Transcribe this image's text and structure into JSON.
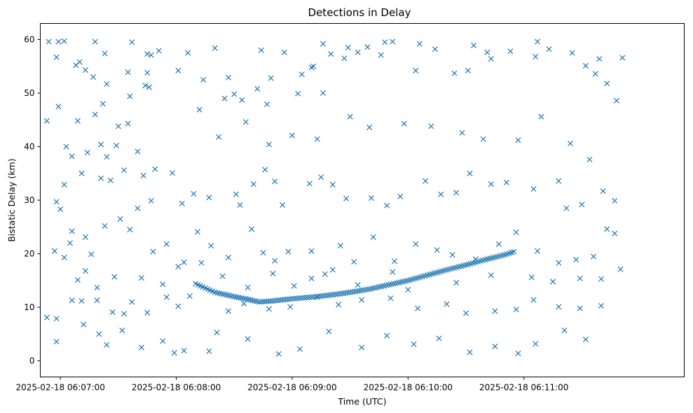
{
  "chart_data": {
    "type": "scatter",
    "title": "Detections in Delay",
    "xlabel": "Time (UTC)",
    "ylabel": "Bistatic Delay (km)",
    "x_unit": "seconds after 06:06:00 UTC",
    "xlim": [
      49.6,
      383.0
    ],
    "ylim": [
      -3.0,
      63.0
    ],
    "x_ticks": [
      {
        "value": 60,
        "label": "2025-02-18 06:07:00"
      },
      {
        "value": 120,
        "label": "2025-02-18 06:08:00"
      },
      {
        "value": 180,
        "label": "2025-02-18 06:09:00"
      },
      {
        "value": 240,
        "label": "2025-02-18 06:10:00"
      },
      {
        "value": 300,
        "label": "2025-02-18 06:11:00"
      }
    ],
    "y_ticks": [
      0,
      10,
      20,
      30,
      40,
      50,
      60
    ],
    "grid": false,
    "marker": "x",
    "color": "#1f77b4",
    "track": {
      "description": "dense target track",
      "points": [
        [
          130,
          14.4
        ],
        [
          140,
          12.8
        ],
        [
          150,
          12.0
        ],
        [
          157,
          11.5
        ],
        [
          163,
          11.0
        ],
        [
          170,
          11.2
        ],
        [
          180,
          11.6
        ],
        [
          190,
          11.9
        ],
        [
          200,
          12.3
        ],
        [
          210,
          12.8
        ],
        [
          220,
          13.4
        ],
        [
          230,
          14.2
        ],
        [
          240,
          15.0
        ],
        [
          250,
          16.0
        ],
        [
          260,
          17.0
        ],
        [
          270,
          17.9
        ],
        [
          280,
          18.9
        ],
        [
          290,
          19.8
        ],
        [
          296,
          20.5
        ]
      ]
    },
    "series": [
      {
        "points": [
          [
            62,
            59.7
          ],
          [
            54,
            59.6
          ],
          [
            59,
            59.6
          ],
          [
            78,
            59.6
          ],
          [
            97,
            59.5
          ],
          [
            140,
            58.4
          ],
          [
            164,
            58.0
          ],
          [
            111,
            57.9
          ],
          [
            105,
            57.3
          ],
          [
            83,
            57.4
          ],
          [
            126,
            57.5
          ],
          [
            107,
            57.1
          ],
          [
            58,
            56.7
          ],
          [
            70,
            55.8
          ],
          [
            68,
            55.2
          ],
          [
            73,
            54.3
          ],
          [
            95,
            53.9
          ],
          [
            105,
            53.8
          ],
          [
            77,
            53.0
          ],
          [
            84,
            51.7
          ],
          [
            104,
            51.4
          ],
          [
            106,
            51.1
          ],
          [
            121,
            54.2
          ],
          [
            134,
            52.5
          ],
          [
            147,
            52.9
          ],
          [
            169,
            52.8
          ],
          [
            145,
            49.0
          ],
          [
            150,
            49.8
          ],
          [
            154,
            48.7
          ],
          [
            162,
            50.8
          ],
          [
            167,
            47.9
          ],
          [
            185,
            53.5
          ],
          [
            191,
            55.0
          ],
          [
            183,
            49.9
          ],
          [
            196,
            50.0
          ],
          [
            190,
            54.8
          ],
          [
            200,
            57.3
          ],
          [
            207,
            56.5
          ],
          [
            214,
            57.6
          ],
          [
            219,
            58.6
          ],
          [
            228,
            59.5
          ],
          [
            232,
            59.6
          ],
          [
            246,
            59.2
          ],
          [
            254,
            58.2
          ],
          [
            244,
            54.2
          ],
          [
            264,
            53.7
          ],
          [
            271,
            54.2
          ],
          [
            283,
            56.4
          ],
          [
            293,
            57.8
          ],
          [
            306,
            56.8
          ],
          [
            313,
            58.2
          ],
          [
            325,
            57.5
          ],
          [
            332,
            55.1
          ],
          [
            339,
            56.4
          ],
          [
            343,
            51.8
          ],
          [
            348,
            48.6
          ],
          [
            351,
            56.6
          ],
          [
            337,
            53.6
          ],
          [
            307,
            59.6
          ],
          [
            281,
            57.6
          ],
          [
            274,
            58.9
          ],
          [
            226,
            57.1
          ],
          [
            209,
            58.5
          ],
          [
            176,
            57.6
          ],
          [
            196,
            59.2
          ],
          [
            96,
            49.4
          ],
          [
            82,
            48.0
          ],
          [
            78,
            46.0
          ],
          [
            69,
            44.8
          ],
          [
            90,
            43.8
          ],
          [
            81,
            40.4
          ],
          [
            84,
            38.1
          ],
          [
            74,
            38.9
          ],
          [
            66,
            38.2
          ],
          [
            89,
            40.2
          ],
          [
            100,
            39.1
          ],
          [
            93,
            35.6
          ],
          [
            86,
            33.7
          ],
          [
            62,
            32.9
          ],
          [
            103,
            34.6
          ],
          [
            109,
            35.8
          ],
          [
            118,
            35.1
          ],
          [
            123,
            29.4
          ],
          [
            129,
            31.2
          ],
          [
            137,
            30.5
          ],
          [
            151,
            31.1
          ],
          [
            153,
            29.1
          ],
          [
            160,
            33.0
          ],
          [
            166,
            35.7
          ],
          [
            171,
            33.5
          ],
          [
            175,
            29.1
          ],
          [
            189,
            33.1
          ],
          [
            195,
            34.3
          ],
          [
            201,
            32.9
          ],
          [
            208,
            30.3
          ],
          [
            221,
            30.4
          ],
          [
            229,
            29.0
          ],
          [
            236,
            30.7
          ],
          [
            249,
            33.6
          ],
          [
            257,
            31.1
          ],
          [
            265,
            31.4
          ],
          [
            272,
            35.0
          ],
          [
            283,
            33.0
          ],
          [
            291,
            33.3
          ],
          [
            305,
            32.1
          ],
          [
            318,
            33.6
          ],
          [
            322,
            28.5
          ],
          [
            330,
            29.2
          ],
          [
            341,
            31.7
          ],
          [
            347,
            29.9
          ],
          [
            81,
            34.1
          ],
          [
            71,
            35.0
          ],
          [
            66,
            24.2
          ],
          [
            58,
            29.7
          ],
          [
            60,
            28.3
          ],
          [
            65,
            22.0
          ],
          [
            73,
            23.1
          ],
          [
            76,
            19.9
          ],
          [
            83,
            25.2
          ],
          [
            91,
            26.5
          ],
          [
            96,
            24.5
          ],
          [
            100,
            28.5
          ],
          [
            107,
            29.9
          ],
          [
            108,
            20.4
          ],
          [
            115,
            21.8
          ],
          [
            124,
            18.4
          ],
          [
            131,
            24.1
          ],
          [
            138,
            21.5
          ],
          [
            147,
            19.3
          ],
          [
            159,
            24.6
          ],
          [
            165,
            20.2
          ],
          [
            171,
            18.7
          ],
          [
            178,
            20.4
          ],
          [
            190,
            20.5
          ],
          [
            197,
            16.2
          ],
          [
            205,
            21.5
          ],
          [
            212,
            18.5
          ],
          [
            222,
            23.1
          ],
          [
            233,
            18.6
          ],
          [
            244,
            21.8
          ],
          [
            255,
            20.7
          ],
          [
            263,
            19.8
          ],
          [
            275,
            19.0
          ],
          [
            287,
            21.8
          ],
          [
            296,
            24.0
          ],
          [
            307,
            20.5
          ],
          [
            318,
            18.3
          ],
          [
            327,
            18.9
          ],
          [
            336,
            19.5
          ],
          [
            343,
            24.6
          ],
          [
            347,
            23.8
          ],
          [
            350,
            17.1
          ],
          [
            57,
            20.5
          ],
          [
            62,
            19.3
          ],
          [
            69,
            15.1
          ],
          [
            73,
            16.8
          ],
          [
            79,
            13.7
          ],
          [
            88,
            15.7
          ],
          [
            102,
            15.5
          ],
          [
            113,
            14.3
          ],
          [
            121,
            17.6
          ],
          [
            133,
            18.3
          ],
          [
            144,
            15.8
          ],
          [
            157,
            13.7
          ],
          [
            170,
            16.3
          ],
          [
            181,
            14.0
          ],
          [
            190,
            15.4
          ],
          [
            201,
            17.0
          ],
          [
            214,
            14.2
          ],
          [
            232,
            16.6
          ],
          [
            240,
            13.3
          ],
          [
            265,
            14.6
          ],
          [
            283,
            16.0
          ],
          [
            304,
            15.6
          ],
          [
            315,
            14.8
          ],
          [
            329,
            15.4
          ],
          [
            340,
            15.3
          ],
          [
            53,
            8.1
          ],
          [
            58,
            7.9
          ],
          [
            66,
            11.3
          ],
          [
            71,
            11.2
          ],
          [
            79,
            11.3
          ],
          [
            87,
            9.1
          ],
          [
            93,
            8.8
          ],
          [
            97,
            11.0
          ],
          [
            105,
            9.0
          ],
          [
            115,
            11.9
          ],
          [
            121,
            10.2
          ],
          [
            127,
            12.1
          ],
          [
            147,
            9.3
          ],
          [
            155,
            10.7
          ],
          [
            168,
            9.7
          ],
          [
            179,
            10.1
          ],
          [
            193,
            11.9
          ],
          [
            204,
            10.5
          ],
          [
            216,
            11.4
          ],
          [
            231,
            11.7
          ],
          [
            245,
            9.8
          ],
          [
            260,
            10.6
          ],
          [
            270,
            8.9
          ],
          [
            285,
            9.3
          ],
          [
            296,
            9.6
          ],
          [
            305,
            11.4
          ],
          [
            318,
            10.1
          ],
          [
            329,
            9.8
          ],
          [
            340,
            10.3
          ],
          [
            58,
            3.6
          ],
          [
            72,
            6.8
          ],
          [
            80,
            5.0
          ],
          [
            84,
            3.0
          ],
          [
            92,
            5.7
          ],
          [
            102,
            2.5
          ],
          [
            113,
            3.7
          ],
          [
            119,
            1.5
          ],
          [
            124,
            1.9
          ],
          [
            137,
            1.8
          ],
          [
            141,
            5.3
          ],
          [
            157,
            4.1
          ],
          [
            173,
            1.3
          ],
          [
            184,
            2.2
          ],
          [
            199,
            5.5
          ],
          [
            216,
            2.5
          ],
          [
            229,
            4.7
          ],
          [
            243,
            3.1
          ],
          [
            256,
            4.2
          ],
          [
            272,
            1.6
          ],
          [
            285,
            2.7
          ],
          [
            297,
            1.4
          ],
          [
            306,
            3.2
          ],
          [
            321,
            5.7
          ],
          [
            332,
            4.0
          ],
          [
            59,
            47.5
          ],
          [
            53,
            44.8
          ],
          [
            63,
            40.0
          ],
          [
            95,
            44.3
          ],
          [
            132,
            46.9
          ],
          [
            142,
            41.8
          ],
          [
            156,
            44.6
          ],
          [
            168,
            40.4
          ],
          [
            180,
            42.1
          ],
          [
            193,
            41.4
          ],
          [
            210,
            45.6
          ],
          [
            220,
            43.6
          ],
          [
            238,
            44.3
          ],
          [
            252,
            43.8
          ],
          [
            268,
            42.6
          ],
          [
            279,
            41.4
          ],
          [
            297,
            41.2
          ],
          [
            309,
            45.6
          ],
          [
            324,
            40.6
          ],
          [
            334,
            37.6
          ]
        ]
      }
    ]
  }
}
